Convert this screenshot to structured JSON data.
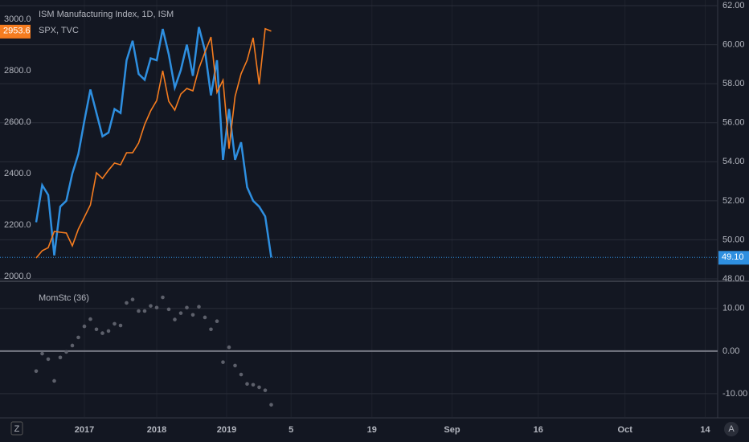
{
  "chart_data": [
    {
      "type": "line",
      "legend_title": "ISM Manufacturing Index, 1D, ISM",
      "x": [
        0,
        1,
        2,
        3,
        4,
        5,
        6,
        7,
        8,
        9,
        10,
        11,
        12,
        13,
        14,
        15,
        16,
        17,
        18,
        19,
        20,
        21,
        22,
        23,
        24,
        25,
        26,
        27,
        28,
        29,
        30,
        31,
        32,
        33,
        34,
        35,
        36,
        37,
        38,
        39
      ],
      "xlim": [
        -6,
        113.07
      ],
      "series": [
        {
          "name": "ISM Manufacturing Index, 1D, ISM",
          "color": "#2e8fe0",
          "axis": "y",
          "values": [
            50.9,
            52.8,
            52.3,
            49.2,
            51.7,
            52.0,
            53.4,
            54.4,
            56.1,
            57.7,
            56.5,
            55.3,
            55.5,
            56.7,
            56.5,
            59.2,
            60.2,
            58.5,
            58.2,
            59.3,
            59.2,
            60.8,
            59.5,
            57.8,
            58.7,
            60.0,
            58.4,
            60.9,
            59.7,
            57.4,
            59.2,
            54.1,
            56.7,
            54.1,
            55.0,
            52.7,
            52.0,
            51.7,
            51.2,
            49.1
          ],
          "last_value_label": "49.10"
        },
        {
          "name": "SPX, TVC",
          "color": "#f57c1f",
          "axis": "y2",
          "values": [
            2072,
            2100,
            2112,
            2175,
            2172,
            2169,
            2119,
            2184,
            2231,
            2278,
            2403,
            2381,
            2413,
            2441,
            2434,
            2481,
            2481,
            2519,
            2591,
            2644,
            2684,
            2800,
            2681,
            2647,
            2709,
            2731,
            2722,
            2809,
            2872,
            2931,
            2716,
            2763,
            2497,
            2700,
            2788,
            2841,
            2928,
            2747,
            2963,
            2953.6
          ],
          "last_value_label": "2953.6"
        }
      ],
      "ylim": [
        48,
        62
      ],
      "yticks": [
        {
          "value": 48,
          "label": "48.00"
        },
        {
          "value": 50,
          "label": "50.00"
        },
        {
          "value": 52,
          "label": "52.00"
        },
        {
          "value": 54,
          "label": "54.00"
        },
        {
          "value": 56,
          "label": "56.00"
        },
        {
          "value": 58,
          "label": "58.00"
        },
        {
          "value": 60,
          "label": "60.00"
        },
        {
          "value": 62,
          "label": "62.00"
        }
      ],
      "y2lim": [
        1990.6,
        3053.1
      ],
      "y2ticks": [
        {
          "value": 2000,
          "label": "2000.0"
        },
        {
          "value": 2200,
          "label": "2200.0"
        },
        {
          "value": 2400,
          "label": "2400.0"
        },
        {
          "value": 2600,
          "label": "2600.0"
        },
        {
          "value": 2800,
          "label": "2800.0"
        },
        {
          "value": 3000,
          "label": "3000.0"
        }
      ],
      "grid": true
    },
    {
      "type": "scatter",
      "legend_title": "MomStc (36)",
      "x": [
        0,
        1,
        2,
        3,
        4,
        5,
        6,
        7,
        8,
        9,
        10,
        11,
        12,
        13,
        14,
        15,
        16,
        17,
        18,
        19,
        20,
        21,
        22,
        23,
        24,
        25,
        26,
        27,
        28,
        29,
        30,
        31,
        32,
        33,
        34,
        35,
        36,
        37,
        38,
        39
      ],
      "values": [
        -4.7,
        -0.6,
        -1.9,
        -7.0,
        -1.5,
        -0.2,
        1.3,
        3.2,
        5.8,
        7.5,
        5.1,
        4.2,
        4.7,
        6.4,
        6.0,
        11.3,
        12.1,
        9.4,
        9.4,
        10.6,
        10.2,
        12.6,
        9.8,
        7.4,
        8.9,
        10.2,
        8.5,
        10.4,
        7.9,
        5.1,
        7.0,
        -2.6,
        0.9,
        -3.4,
        -5.5,
        -7.7,
        -7.9,
        -8.5,
        -9.2,
        -12.6
      ],
      "color": "#5d606b",
      "ylim": [
        -15.3,
        16
      ],
      "yticks": [
        {
          "value": -10,
          "label": "-10.00"
        },
        {
          "value": 0,
          "label": "0.00"
        },
        {
          "value": 10,
          "label": "10.00"
        }
      ],
      "xlim": [
        -6,
        113.07
      ],
      "xticks": [
        {
          "value": 8,
          "label": "2017"
        },
        {
          "value": 20,
          "label": "2018"
        },
        {
          "value": 31.6,
          "label": "2019"
        },
        {
          "value": 42.3,
          "label": "5"
        },
        {
          "value": 55.7,
          "label": "19"
        },
        {
          "value": 69,
          "label": "Sep"
        },
        {
          "value": 83.3,
          "label": "16"
        },
        {
          "value": 97.7,
          "label": "Oct"
        },
        {
          "value": 111,
          "label": "14"
        }
      ],
      "grid": true
    }
  ],
  "buttons": {
    "left": "Z",
    "right": "A"
  }
}
